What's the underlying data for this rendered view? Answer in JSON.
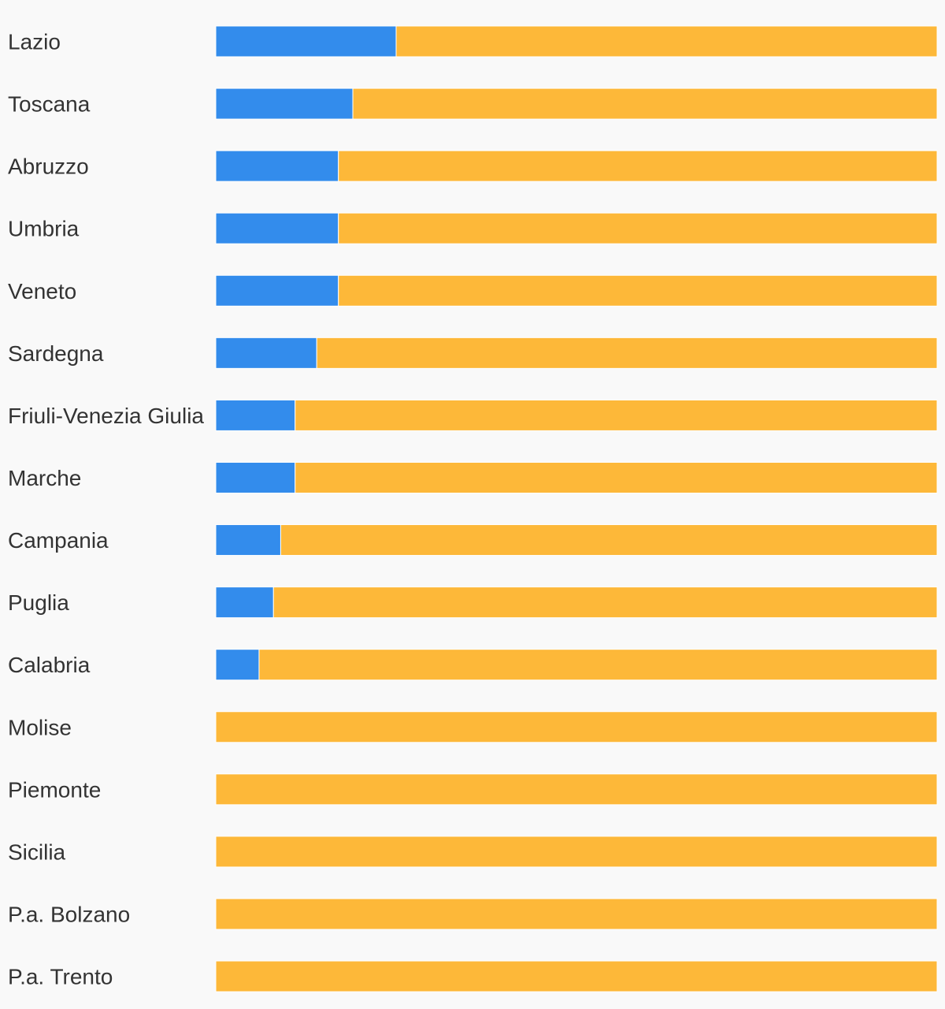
{
  "chart_data": {
    "type": "bar",
    "orientation": "horizontal",
    "stacked": true,
    "normalized": true,
    "categories": [
      "Lazio",
      "Toscana",
      "Abruzzo",
      "Umbria",
      "Veneto",
      "Sardegna",
      "Friuli-Venezia Giulia",
      "Marche",
      "Campania",
      "Puglia",
      "Calabria",
      "Molise",
      "Piemonte",
      "Sicilia",
      "P.a. Bolzano",
      "P.a. Trento"
    ],
    "series": [
      {
        "color": "#338cec",
        "values": [
          25,
          19,
          17,
          17,
          17,
          14,
          11,
          11,
          9,
          8,
          6,
          0,
          0,
          0,
          0,
          0
        ]
      },
      {
        "color": "#fdb839",
        "values": [
          75,
          81,
          83,
          83,
          83,
          86,
          89,
          89,
          91,
          92,
          94,
          100,
          100,
          100,
          100,
          100
        ]
      }
    ],
    "xlim": [
      0,
      100
    ],
    "grid": false,
    "legend": "none"
  }
}
